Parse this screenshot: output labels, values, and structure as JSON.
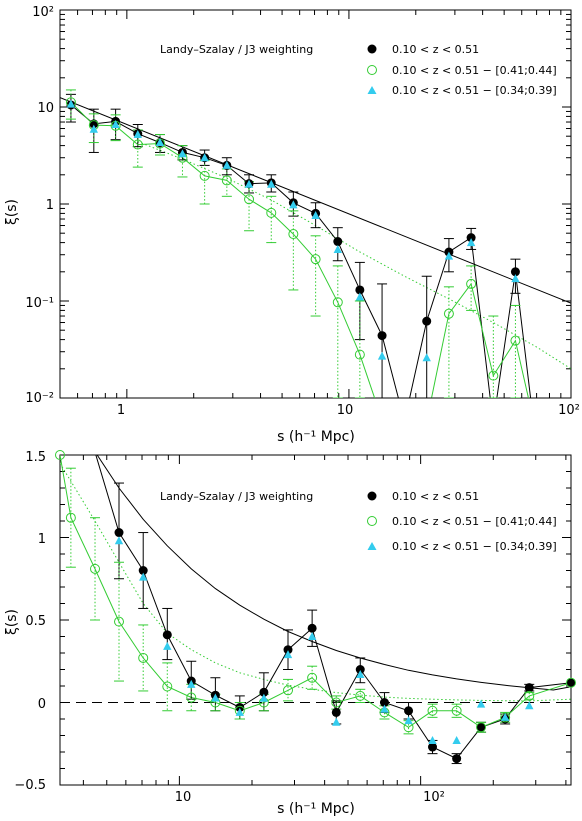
{
  "chart_data": [
    {
      "type": "line",
      "xscale": "log",
      "yscale": "log",
      "xlim": [
        0.5,
        100
      ],
      "ylim": [
        0.01,
        100
      ],
      "x_ticklabels": [
        "1",
        "10",
        "10²"
      ],
      "y_ticklabels": [
        "10⁻²",
        "10⁻¹",
        "1",
        "10",
        "10²"
      ],
      "xlabel": "s (h⁻¹ Mpc)",
      "ylabel": "ξ(s)",
      "annotation": "Landy–Szalay / J3 weighting",
      "legend_position": "top-right",
      "powerlaw_fit": {
        "x": [
          0.5,
          100
        ],
        "y": [
          12.5,
          0.095
        ]
      },
      "series": [
        {
          "name": "0.10 < z < 0.51",
          "marker": "filled-circle",
          "color": "#000000",
          "points": [
            {
              "x": 0.56,
              "y": 10.5,
              "lo": 7.0,
              "hi": 13.5
            },
            {
              "x": 0.71,
              "y": 6.7,
              "lo": 3.4,
              "hi": 9.5
            },
            {
              "x": 0.89,
              "y": 7.1,
              "lo": 4.6,
              "hi": 9.5
            },
            {
              "x": 1.12,
              "y": 5.3,
              "lo": 3.9,
              "hi": 6.6
            },
            {
              "x": 1.41,
              "y": 4.3,
              "lo": 3.4,
              "hi": 5.2
            },
            {
              "x": 1.78,
              "y": 3.4,
              "lo": 2.85,
              "hi": 4.0
            },
            {
              "x": 2.24,
              "y": 3.0,
              "lo": 2.5,
              "hi": 3.6
            },
            {
              "x": 2.82,
              "y": 2.5,
              "lo": 2.0,
              "hi": 3.0
            },
            {
              "x": 3.55,
              "y": 1.62,
              "lo": 1.3,
              "hi": 2.0
            },
            {
              "x": 4.47,
              "y": 1.65,
              "lo": 1.33,
              "hi": 2.0
            },
            {
              "x": 5.62,
              "y": 1.03,
              "lo": 0.75,
              "hi": 1.33
            },
            {
              "x": 7.08,
              "y": 0.8,
              "lo": 0.57,
              "hi": 1.03
            },
            {
              "x": 8.91,
              "y": 0.41,
              "lo": 0.26,
              "hi": 0.57
            },
            {
              "x": 11.2,
              "y": 0.13,
              "lo": 0.04,
              "hi": 0.25
            },
            {
              "x": 14.1,
              "y": 0.044,
              "lo": 0.01,
              "hi": 0.15
            },
            {
              "x": 22.4,
              "y": 0.062,
              "lo": 0.01,
              "hi": 0.18
            },
            {
              "x": 28.2,
              "y": 0.32,
              "lo": 0.2,
              "hi": 0.44
            },
            {
              "x": 35.5,
              "y": 0.45,
              "lo": 0.34,
              "hi": 0.56
            },
            {
              "x": 56.2,
              "y": 0.2,
              "lo": 0.12,
              "hi": 0.27
            }
          ]
        },
        {
          "name": "0.10 < z < 0.51 − [0.41;0.44]",
          "marker": "open-circle",
          "color": "#33cc33",
          "points": [
            {
              "x": 0.56,
              "y": 11.2,
              "lo": 7.5,
              "hi": 15.0
            },
            {
              "x": 0.71,
              "y": 6.5,
              "lo": 4.3,
              "hi": 8.5
            },
            {
              "x": 0.89,
              "y": 6.4,
              "lo": 4.5,
              "hi": 8.3
            },
            {
              "x": 1.12,
              "y": 4.1,
              "lo": 2.4,
              "hi": 5.8
            },
            {
              "x": 1.41,
              "y": 4.2,
              "lo": 3.2,
              "hi": 5.2
            },
            {
              "x": 1.78,
              "y": 3.0,
              "lo": 1.9,
              "hi": 4.0
            },
            {
              "x": 2.24,
              "y": 1.95,
              "lo": 1.0,
              "hi": 2.8
            },
            {
              "x": 2.82,
              "y": 1.75,
              "lo": 1.2,
              "hi": 2.3
            },
            {
              "x": 3.55,
              "y": 1.12,
              "lo": 0.53,
              "hi": 1.7
            },
            {
              "x": 4.47,
              "y": 0.81,
              "lo": 0.4,
              "hi": 1.2
            },
            {
              "x": 5.62,
              "y": 0.49,
              "lo": 0.13,
              "hi": 0.85
            },
            {
              "x": 7.08,
              "y": 0.27,
              "lo": 0.07,
              "hi": 0.47
            },
            {
              "x": 8.91,
              "y": 0.097,
              "lo": 0.01,
              "hi": 0.23
            },
            {
              "x": 11.2,
              "y": 0.028,
              "lo": 0.01,
              "hi": 0.1
            },
            {
              "x": 28.2,
              "y": 0.074,
              "lo": 0.01,
              "hi": 0.14
            },
            {
              "x": 35.5,
              "y": 0.15,
              "lo": 0.08,
              "hi": 0.23
            },
            {
              "x": 44.7,
              "y": 0.017,
              "lo": 0.01,
              "hi": 0.07
            },
            {
              "x": 56.2,
              "y": 0.039,
              "lo": 0.01,
              "hi": 0.09
            }
          ]
        },
        {
          "name": "0.10 < z < 0.51 − [0.34;0.39]",
          "marker": "filled-triangle",
          "color": "#33ccee",
          "points": [
            {
              "x": 0.56,
              "y": 10.7
            },
            {
              "x": 0.71,
              "y": 5.9
            },
            {
              "x": 0.89,
              "y": 6.6
            },
            {
              "x": 1.12,
              "y": 5.2
            },
            {
              "x": 1.41,
              "y": 4.3
            },
            {
              "x": 1.78,
              "y": 3.3
            },
            {
              "x": 2.24,
              "y": 3.0
            },
            {
              "x": 2.82,
              "y": 2.5
            },
            {
              "x": 3.55,
              "y": 1.6
            },
            {
              "x": 4.47,
              "y": 1.6
            },
            {
              "x": 5.62,
              "y": 0.98
            },
            {
              "x": 7.08,
              "y": 0.76
            },
            {
              "x": 8.91,
              "y": 0.34
            },
            {
              "x": 11.2,
              "y": 0.11
            },
            {
              "x": 14.1,
              "y": 0.027
            },
            {
              "x": 22.4,
              "y": 0.026
            },
            {
              "x": 28.2,
              "y": 0.29
            },
            {
              "x": 35.5,
              "y": 0.4
            },
            {
              "x": 56.2,
              "y": 0.17
            }
          ]
        }
      ],
      "dotted_model": {
        "color": "#33cc33",
        "x": [
          1.12,
          1.78,
          2.82,
          4.47,
          7.08,
          11.2,
          17.8,
          28.2,
          44.7,
          70.8,
          100
        ],
        "y": [
          4.4,
          2.9,
          1.85,
          1.1,
          0.6,
          0.32,
          0.18,
          0.105,
          0.06,
          0.033,
          0.02
        ]
      }
    },
    {
      "type": "line",
      "xscale": "log",
      "yscale": "linear",
      "xlim": [
        3.2,
        420
      ],
      "ylim": [
        -0.5,
        1.5
      ],
      "x_ticklabels": [
        "10",
        "10²"
      ],
      "y_ticklabels": [
        "−0.5",
        "0",
        "0.5",
        "1",
        "1.5"
      ],
      "xlabel": "s (h⁻¹ Mpc)",
      "ylabel": "ξ(s)",
      "annotation": "Landy–Szalay / J3 weighting",
      "legend_position": "top-right",
      "zero_line": true,
      "powerlaw_fit": {
        "x": [
          4.47,
          5.62,
          7.08,
          8.91,
          11.2,
          14.1,
          17.8,
          22.4,
          28.2,
          35.5,
          44.7,
          56.2,
          70.8,
          89.1,
          112,
          141,
          178,
          224,
          282,
          355,
          420
        ],
        "y": [
          1.52,
          1.3,
          1.11,
          0.95,
          0.81,
          0.69,
          0.59,
          0.505,
          0.43,
          0.37,
          0.315,
          0.27,
          0.23,
          0.195,
          0.167,
          0.143,
          0.122,
          0.104,
          0.089,
          0.076,
          0.095
        ]
      },
      "series": [
        {
          "name": "0.10 < z < 0.51",
          "marker": "filled-circle",
          "color": "#000000",
          "points": [
            {
              "x": 4.1,
              "y": 1.7
            },
            {
              "x": 5.62,
              "y": 1.03,
              "lo": 0.75,
              "hi": 1.33
            },
            {
              "x": 7.08,
              "y": 0.8,
              "lo": 0.57,
              "hi": 1.03
            },
            {
              "x": 8.91,
              "y": 0.41,
              "lo": 0.26,
              "hi": 0.57
            },
            {
              "x": 11.2,
              "y": 0.13,
              "lo": 0.02,
              "hi": 0.25
            },
            {
              "x": 14.1,
              "y": 0.044,
              "lo": -0.05,
              "hi": 0.15
            },
            {
              "x": 17.8,
              "y": -0.03,
              "lo": -0.1,
              "hi": 0.04
            },
            {
              "x": 22.4,
              "y": 0.062,
              "lo": -0.05,
              "hi": 0.18
            },
            {
              "x": 28.2,
              "y": 0.32,
              "lo": 0.2,
              "hi": 0.44
            },
            {
              "x": 35.5,
              "y": 0.45,
              "lo": 0.34,
              "hi": 0.56
            },
            {
              "x": 44.7,
              "y": -0.06,
              "lo": -0.13,
              "hi": 0.01
            },
            {
              "x": 56.2,
              "y": 0.2,
              "lo": 0.12,
              "hi": 0.27
            },
            {
              "x": 70.8,
              "y": 0.0,
              "lo": -0.06,
              "hi": 0.06
            },
            {
              "x": 89.1,
              "y": -0.05,
              "lo": -0.1,
              "hi": 0.0
            },
            {
              "x": 112,
              "y": -0.27,
              "lo": -0.31,
              "hi": -0.23
            },
            {
              "x": 141,
              "y": -0.34,
              "lo": -0.37,
              "hi": -0.31
            },
            {
              "x": 178,
              "y": -0.15,
              "lo": -0.18,
              "hi": -0.12
            },
            {
              "x": 224,
              "y": -0.1,
              "lo": -0.13,
              "hi": -0.07
            },
            {
              "x": 282,
              "y": 0.09,
              "lo": 0.07,
              "hi": 0.11
            },
            {
              "x": 420,
              "y": 0.12
            }
          ]
        },
        {
          "name": "0.10 < z < 0.51 − [0.41;0.44]",
          "marker": "open-circle",
          "color": "#33cc33",
          "points": [
            {
              "x": 3.2,
              "y": 1.5
            },
            {
              "x": 3.55,
              "y": 1.12,
              "lo": 0.82,
              "hi": 1.42
            },
            {
              "x": 4.47,
              "y": 0.81,
              "lo": 0.5,
              "hi": 1.12
            },
            {
              "x": 5.62,
              "y": 0.49,
              "lo": 0.13,
              "hi": 0.85
            },
            {
              "x": 7.08,
              "y": 0.27,
              "lo": 0.07,
              "hi": 0.47
            },
            {
              "x": 8.91,
              "y": 0.097,
              "lo": -0.05,
              "hi": 0.24
            },
            {
              "x": 11.2,
              "y": 0.03,
              "lo": -0.05,
              "hi": 0.11
            },
            {
              "x": 14.1,
              "y": 0.0,
              "lo": -0.05,
              "hi": 0.05
            },
            {
              "x": 17.8,
              "y": -0.05,
              "lo": -0.1,
              "hi": 0.0
            },
            {
              "x": 22.4,
              "y": 0.0,
              "lo": -0.05,
              "hi": 0.05
            },
            {
              "x": 28.2,
              "y": 0.074,
              "lo": 0.01,
              "hi": 0.14
            },
            {
              "x": 35.5,
              "y": 0.15,
              "lo": 0.08,
              "hi": 0.22
            },
            {
              "x": 44.7,
              "y": 0.0,
              "lo": -0.04,
              "hi": 0.04
            },
            {
              "x": 56.2,
              "y": 0.04,
              "lo": 0.0,
              "hi": 0.08
            },
            {
              "x": 70.8,
              "y": -0.06,
              "lo": -0.1,
              "hi": -0.02
            },
            {
              "x": 89.1,
              "y": -0.15,
              "lo": -0.19,
              "hi": -0.11
            },
            {
              "x": 112,
              "y": -0.05,
              "lo": -0.09,
              "hi": -0.01
            },
            {
              "x": 141,
              "y": -0.05,
              "lo": -0.09,
              "hi": -0.01
            },
            {
              "x": 178,
              "y": -0.15,
              "lo": -0.18,
              "hi": -0.12
            },
            {
              "x": 224,
              "y": -0.09,
              "lo": -0.12,
              "hi": -0.06
            },
            {
              "x": 282,
              "y": 0.04,
              "lo": 0.02,
              "hi": 0.06
            },
            {
              "x": 420,
              "y": 0.12
            }
          ]
        },
        {
          "name": "0.10 < z < 0.51 − [0.34;0.39]",
          "marker": "filled-triangle",
          "color": "#33ccee",
          "points": [
            {
              "x": 5.62,
              "y": 0.98
            },
            {
              "x": 7.08,
              "y": 0.76
            },
            {
              "x": 8.91,
              "y": 0.34
            },
            {
              "x": 11.2,
              "y": 0.11
            },
            {
              "x": 14.1,
              "y": 0.027
            },
            {
              "x": 17.8,
              "y": -0.06
            },
            {
              "x": 22.4,
              "y": 0.026
            },
            {
              "x": 28.2,
              "y": 0.29
            },
            {
              "x": 35.5,
              "y": 0.4
            },
            {
              "x": 44.7,
              "y": -0.12
            },
            {
              "x": 56.2,
              "y": 0.17
            },
            {
              "x": 70.8,
              "y": -0.04
            },
            {
              "x": 89.1,
              "y": -0.11
            },
            {
              "x": 112,
              "y": -0.23
            },
            {
              "x": 141,
              "y": -0.23
            },
            {
              "x": 178,
              "y": -0.01
            },
            {
              "x": 224,
              "y": -0.09
            },
            {
              "x": 282,
              "y": -0.02
            }
          ]
        }
      ],
      "dotted_model": {
        "color": "#33cc33",
        "x": [
          3.2,
          4.47,
          5.62,
          7.08,
          8.91,
          11.2,
          14.1,
          17.8,
          22.4,
          28.2,
          35.5,
          44.7,
          56.2,
          70.8,
          89.1,
          112,
          141,
          178,
          224,
          282,
          420
        ],
        "y": [
          1.45,
          1.1,
          0.85,
          0.6,
          0.42,
          0.32,
          0.24,
          0.18,
          0.14,
          0.105,
          0.08,
          0.06,
          0.045,
          0.033,
          0.025,
          0.02,
          0.016,
          0.013,
          0.011,
          0.01,
          0.02
        ]
      }
    }
  ]
}
